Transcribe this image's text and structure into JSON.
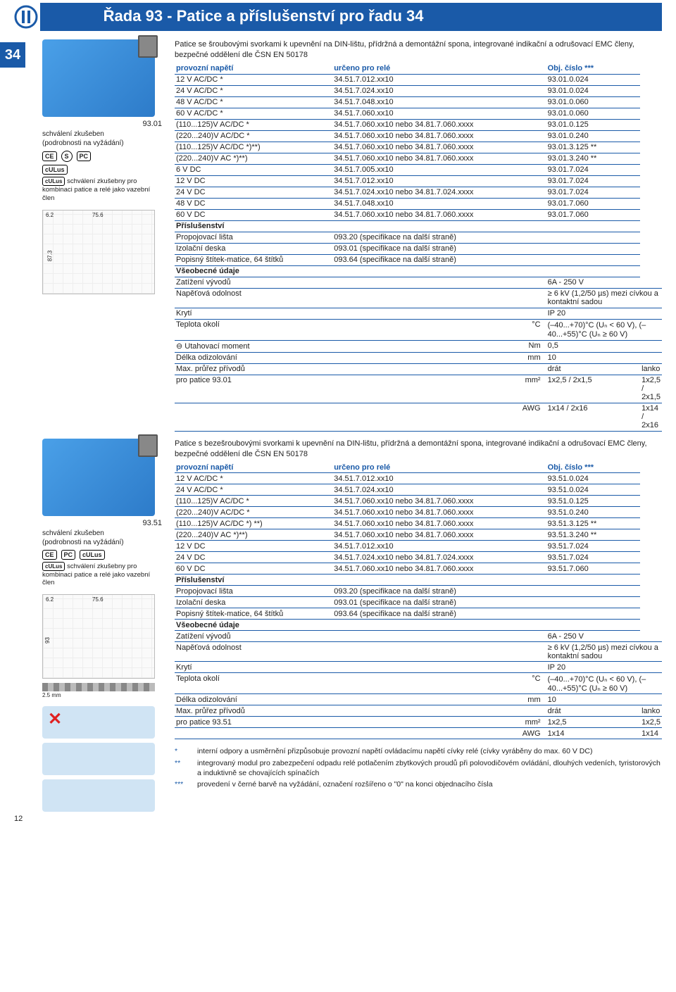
{
  "brand": "finder",
  "page_title": "Řada 93 - Patice a příslušenství pro řadu 34",
  "left_tab": "34",
  "page_number": "12",
  "colors": {
    "brand_blue": "#1a5aa8",
    "product_blue": "#4aa0e8",
    "rule": "#1a5aa8"
  },
  "section1": {
    "model": "93.01",
    "approval_line1": "schválení zkušeben",
    "approval_line2": "(podrobnosti na vyžádání)",
    "cert_marks": [
      "CE",
      "S",
      "PC",
      "cULus"
    ],
    "approval_note": "schválení zkušebny pro kombinaci patice a relé jako vazební člen",
    "drawing": {
      "dims": [
        "6.2",
        "75.6",
        "87.3"
      ]
    },
    "intro": "Patice se šroubovými svorkami k upevnění na DIN-lištu, přídržná a demontážní spona, integrované indikační a odrušovací EMC členy, bezpečné oddělení dle ČSN EN 50178",
    "headers": [
      "provozní napětí",
      "určeno pro relé",
      "Obj. číslo ***"
    ],
    "rows": [
      [
        "12 V AC/DC *",
        "34.51.7.012.xx10",
        "93.01.0.024"
      ],
      [
        "24 V AC/DC *",
        "34.51.7.024.xx10",
        "93.01.0.024"
      ],
      [
        "48 V AC/DC *",
        "34.51.7.048.xx10",
        "93.01.0.060"
      ],
      [
        "60 V AC/DC *",
        "34.51.7.060.xx10",
        "93.01.0.060"
      ],
      [
        "(110...125)V AC/DC *",
        "34.51.7.060.xx10 nebo 34.81.7.060.xxxx",
        "93.01.0.125"
      ],
      [
        "(220...240)V AC/DC *",
        "34.51.7.060.xx10 nebo 34.81.7.060.xxxx",
        "93.01.0.240"
      ],
      [
        "(110...125)V AC/DC *)**)",
        "34.51.7.060.xx10 nebo 34.81.7.060.xxxx",
        "93.01.3.125 **"
      ],
      [
        "(220...240)V AC *)**)",
        "34.51.7.060.xx10 nebo 34.81.7.060.xxxx",
        "93.01.3.240 **"
      ],
      [
        "6 V DC",
        "34.51.7.005.xx10",
        "93.01.7.024"
      ],
      [
        "12 V DC",
        "34.51.7.012.xx10",
        "93.01.7.024"
      ],
      [
        "24 V DC",
        "34.51.7.024.xx10 nebo 34.81.7.024.xxxx",
        "93.01.7.024"
      ],
      [
        "48 V DC",
        "34.51.7.048.xx10",
        "93.01.7.060"
      ],
      [
        "60 V DC",
        "34.51.7.060.xx10 nebo 34.81.7.060.xxxx",
        "93.01.7.060"
      ]
    ],
    "accessories_header": "Příslušenství",
    "accessories": [
      [
        "Propojovací lišta",
        "093.20 (specifikace na další straně)"
      ],
      [
        "Izolační deska",
        "093.01 (specifikace na další straně)"
      ],
      [
        "Popisný štítek-matice, 64 štítků",
        "093.64 (specifikace na další straně)"
      ]
    ],
    "general_header": "Všeobecné údaje",
    "general": [
      [
        "Zatížení vývodů",
        "",
        "6A - 250 V",
        ""
      ],
      [
        "Napěťová odolnost",
        "",
        "≥ 6 kV (1,2/50 µs) mezi cívkou a kontaktní sadou",
        ""
      ],
      [
        "Krytí",
        "",
        "IP 20",
        ""
      ],
      [
        "Teplota okolí",
        "°C",
        "(–40...+70)°C (Uₙ < 60 V), (–40...+55)°C (Uₙ ≥ 60 V)",
        ""
      ],
      [
        "⊖ Utahovací moment",
        "Nm",
        "0,5",
        ""
      ],
      [
        "Délka odizolování",
        "mm",
        "10",
        ""
      ],
      [
        "Max. průřez přívodů",
        "",
        "drát",
        "lanko"
      ],
      [
        "pro patice 93.01",
        "mm²",
        "1x2,5 / 2x1,5",
        "1x2,5 / 2x1,5"
      ],
      [
        "",
        "AWG",
        "1x14 / 2x16",
        "1x14 / 2x16"
      ]
    ]
  },
  "section2": {
    "model": "93.51",
    "approval_line1": "schválení zkušeben",
    "approval_line2": "(podrobnosti na vyžádání)",
    "cert_marks": [
      "CE",
      "PC",
      "cULus"
    ],
    "approval_note": "schválení zkušebny pro kombinaci patice a relé jako vazební člen",
    "drawing": {
      "dims": [
        "6.2",
        "75.6",
        "93",
        "2.5 mm"
      ]
    },
    "intro": "Patice s bezešroubovými svorkami k upevnění na DIN-lištu, přídržná a demontážní spona, integrované indikační a odrušovací EMC členy, bezpečné oddělení dle ČSN EN 50178",
    "headers": [
      "provozní napětí",
      "určeno pro relé",
      "Obj. číslo ***"
    ],
    "rows": [
      [
        "12 V AC/DC *",
        "34.51.7.012.xx10",
        "93.51.0.024"
      ],
      [
        "24 V AC/DC *",
        "34.51.7.024.xx10",
        "93.51.0.024"
      ],
      [
        "(110...125)V AC/DC *",
        "34.51.7.060.xx10 nebo 34.81.7.060.xxxx",
        "93.51.0.125"
      ],
      [
        "(220...240)V AC/DC *",
        "34.51.7.060.xx10 nebo 34.81.7.060.xxxx",
        "93.51.0.240"
      ],
      [
        "(110...125)V AC/DC *) **)",
        "34.51.7.060.xx10 nebo 34.81.7.060.xxxx",
        "93.51.3.125 **"
      ],
      [
        "(220...240)V AC *)**)",
        "34.51.7.060.xx10 nebo 34.81.7.060.xxxx",
        "93.51.3.240 **"
      ],
      [
        "12 V DC",
        "34.51.7.012.xx10",
        "93.51.7.024"
      ],
      [
        "24 V DC",
        "34.51.7.024.xx10 nebo 34.81.7.024.xxxx",
        "93.51.7.024"
      ],
      [
        "60 V DC",
        "34.51.7.060.xx10 nebo 34.81.7.060.xxxx",
        "93.51.7.060"
      ]
    ],
    "accessories_header": "Příslušenství",
    "accessories": [
      [
        "Propojovací lišta",
        "093.20 (specifikace na další straně)"
      ],
      [
        "Izolační deska",
        "093.01 (specifikace na další straně)"
      ],
      [
        "Popisný štítek-matice, 64 štítků",
        "093.64 (specifikace na další straně)"
      ]
    ],
    "general_header": "Všeobecné údaje",
    "general": [
      [
        "Zatížení vývodů",
        "",
        "6A - 250 V",
        ""
      ],
      [
        "Napěťová odolnost",
        "",
        "≥ 6 kV (1,2/50 µs) mezi cívkou a kontaktní sadou",
        ""
      ],
      [
        "Krytí",
        "",
        "IP 20",
        ""
      ],
      [
        "Teplota okolí",
        "°C",
        "(–40...+70)°C (Uₙ < 60 V), (–40...+55)°C (Uₙ ≥ 60 V)",
        ""
      ],
      [
        "Délka odizolování",
        "mm",
        "10",
        ""
      ],
      [
        "Max. průřez přívodů",
        "",
        "drát",
        "lanko"
      ],
      [
        "pro patice 93.51",
        "mm²",
        "1x2,5",
        "1x2,5"
      ],
      [
        "",
        "AWG",
        "1x14",
        "1x14"
      ]
    ]
  },
  "footnotes": [
    [
      "*",
      "interní odpory a usměrnění přizpůsobuje provozní napětí ovládacímu napětí cívky relé (cívky vyráběny do max. 60 V DC)"
    ],
    [
      "**",
      "integrovaný modul pro zabezpečení odpadu relé potlačením zbytkových proudů při polovodičovém ovládání, dlouhých vedeních, tyristorových a induktivně se chovajících spínačích"
    ],
    [
      "***",
      "provedení v černé barvě na vyžádání, označení rozšířeno o \"0\" na konci objednacího čísla"
    ]
  ]
}
